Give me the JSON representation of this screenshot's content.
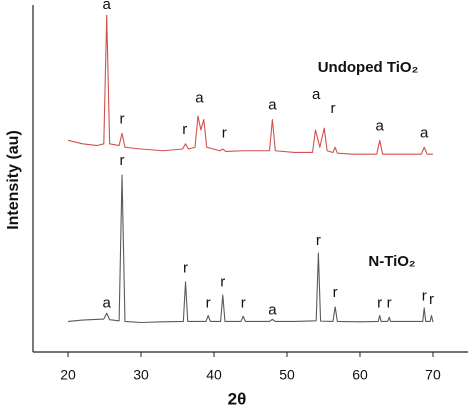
{
  "chart_data": {
    "type": "line",
    "x_label": "2θ",
    "y_label": "Intensity (au)",
    "xlim": [
      15.2,
      74.8
    ],
    "xticks": [
      20,
      30,
      40,
      50,
      60,
      70
    ],
    "ylim": [
      0,
      100
    ],
    "series": [
      {
        "name": "Undoped TiO₂",
        "color": "#d2504e",
        "x": [
          20,
          22,
          24,
          24.9,
          25.3,
          25.7,
          27.0,
          27.4,
          27.8,
          30,
          33,
          35.7,
          36.1,
          36.5,
          37.4,
          37.8,
          38.2,
          38.6,
          39.0,
          40.8,
          41.2,
          41.6,
          44,
          47.6,
          48.0,
          48.4,
          51,
          53.5,
          53.9,
          54.5,
          55.1,
          55.5,
          56.3,
          56.6,
          56.9,
          59,
          62.3,
          62.7,
          63.1,
          66,
          68.4,
          68.8,
          69.2,
          70
        ],
        "values": [
          61,
          60,
          59.5,
          60,
          97,
          60,
          59.5,
          63,
          59,
          58.5,
          58,
          58.5,
          60,
          58.5,
          59,
          68,
          64,
          67,
          59,
          58,
          58.5,
          57.8,
          58,
          58,
          67,
          58,
          57.5,
          57.5,
          64,
          59,
          64.5,
          58,
          57.5,
          59,
          57.3,
          57,
          57,
          61,
          57,
          57,
          57,
          59,
          57,
          57
        ]
      },
      {
        "name": "N-TiO₂",
        "color": "#5a5a5a",
        "x": [
          20,
          22,
          24.9,
          25.3,
          25.7,
          27.0,
          27.4,
          27.8,
          30,
          33,
          35.8,
          36.1,
          36.4,
          38.9,
          39.2,
          39.5,
          40.9,
          41.2,
          41.5,
          43.7,
          44.0,
          44.3,
          47.6,
          48.0,
          48.4,
          51,
          54.0,
          54.3,
          54.6,
          56.3,
          56.6,
          56.9,
          60,
          62.5,
          62.7,
          62.9,
          63.8,
          64.0,
          64.2,
          66,
          68.6,
          68.8,
          69.0,
          69.6,
          69.8,
          70
        ],
        "values": [
          8.8,
          9.2,
          9.5,
          11.2,
          9.3,
          9,
          51,
          8.8,
          8.5,
          8.7,
          8.8,
          20.2,
          8.8,
          8.8,
          10.5,
          8.8,
          8.8,
          16.4,
          8.8,
          8.8,
          10.3,
          8.8,
          8.8,
          9.4,
          8.8,
          8.8,
          9,
          28.5,
          8.9,
          8.8,
          13,
          8.8,
          8.7,
          8.8,
          10.5,
          8.8,
          8.8,
          10,
          8.8,
          8.8,
          8.8,
          12.7,
          8.8,
          8.8,
          10.5,
          8.6
        ]
      }
    ],
    "annotations": [
      {
        "text": "a",
        "x": 25.3,
        "y": 100
      },
      {
        "text": "r",
        "x": 27.4,
        "y": 67
      },
      {
        "text": "r",
        "x": 36,
        "y": 64
      },
      {
        "text": "a",
        "x": 38,
        "y": 73
      },
      {
        "text": "r",
        "x": 41.4,
        "y": 63
      },
      {
        "text": "a",
        "x": 48,
        "y": 71
      },
      {
        "text": "a",
        "x": 54,
        "y": 74
      },
      {
        "text": "r",
        "x": 56.3,
        "y": 70
      },
      {
        "text": "a",
        "x": 62.7,
        "y": 65
      },
      {
        "text": "a",
        "x": 68.8,
        "y": 63
      },
      {
        "text": "a",
        "x": 25.3,
        "y": 14
      },
      {
        "text": "r",
        "x": 27.4,
        "y": 55
      },
      {
        "text": "r",
        "x": 36.1,
        "y": 24
      },
      {
        "text": "r",
        "x": 39.2,
        "y": 14
      },
      {
        "text": "r",
        "x": 41.2,
        "y": 20
      },
      {
        "text": "r",
        "x": 44,
        "y": 14
      },
      {
        "text": "a",
        "x": 48,
        "y": 12
      },
      {
        "text": "r",
        "x": 54.3,
        "y": 32
      },
      {
        "text": "r",
        "x": 56.6,
        "y": 17
      },
      {
        "text": "r",
        "x": 62.7,
        "y": 14
      },
      {
        "text": "r",
        "x": 64,
        "y": 14
      },
      {
        "text": "r",
        "x": 68.8,
        "y": 16
      },
      {
        "text": "r",
        "x": 69.8,
        "y": 15
      }
    ]
  }
}
